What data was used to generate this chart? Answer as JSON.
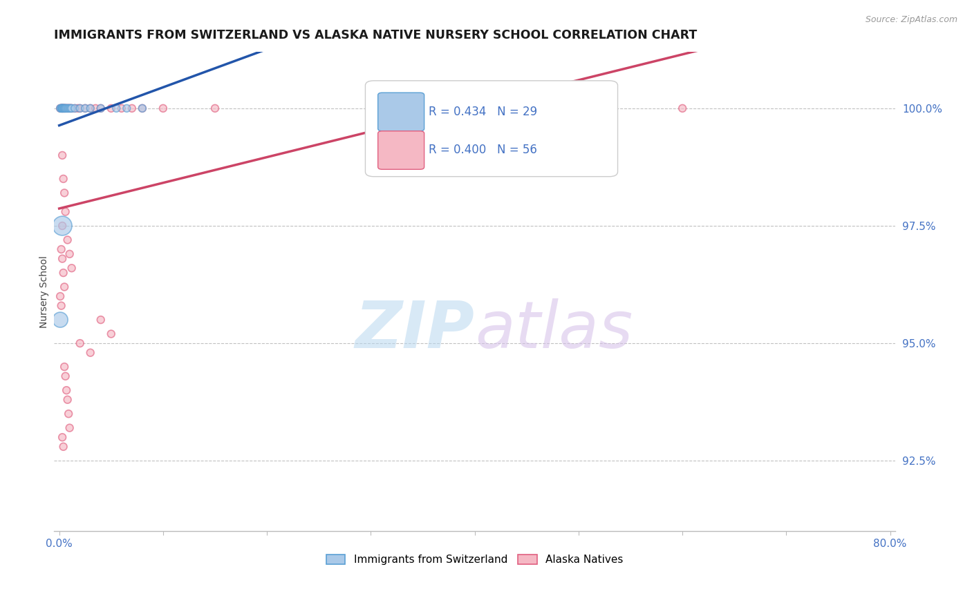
{
  "title": "IMMIGRANTS FROM SWITZERLAND VS ALASKA NATIVE NURSERY SCHOOL CORRELATION CHART",
  "source_text": "Source: ZipAtlas.com",
  "ylabel": "Nursery School",
  "xlim": [
    -0.005,
    0.805
  ],
  "ylim": [
    0.91,
    1.012
  ],
  "xtick_positions": [
    0.0,
    0.1,
    0.2,
    0.3,
    0.4,
    0.5,
    0.6,
    0.7,
    0.8
  ],
  "xticklabels": [
    "0.0%",
    "",
    "",
    "",
    "",
    "",
    "",
    "",
    "80.0%"
  ],
  "ytick_positions": [
    1.0,
    0.975,
    0.95,
    0.925
  ],
  "yticklabels": [
    "100.0%",
    "97.5%",
    "95.0%",
    "92.5%"
  ],
  "blue_color": "#aac9e8",
  "pink_color": "#f5b8c4",
  "blue_edge_color": "#5a9fd4",
  "pink_edge_color": "#e06080",
  "blue_line_color": "#2255aa",
  "pink_line_color": "#cc4466",
  "R_blue": 0.434,
  "N_blue": 29,
  "R_pink": 0.4,
  "N_pink": 56,
  "legend_label_blue": "Immigrants from Switzerland",
  "legend_label_pink": "Alaska Natives",
  "watermark_zip": "ZIP",
  "watermark_atlas": "atlas",
  "blue_scatter_x": [
    0.001,
    0.002,
    0.002,
    0.003,
    0.003,
    0.003,
    0.003,
    0.004,
    0.004,
    0.005,
    0.005,
    0.006,
    0.006,
    0.007,
    0.008,
    0.009,
    0.01,
    0.011,
    0.012,
    0.015,
    0.02,
    0.025,
    0.03,
    0.04,
    0.055,
    0.065,
    0.08,
    0.003,
    0.001
  ],
  "blue_scatter_y": [
    1.0,
    1.0,
    1.0,
    1.0,
    1.0,
    1.0,
    1.0,
    1.0,
    1.0,
    1.0,
    1.0,
    1.0,
    1.0,
    1.0,
    1.0,
    1.0,
    1.0,
    1.0,
    1.0,
    1.0,
    1.0,
    1.0,
    1.0,
    1.0,
    1.0,
    1.0,
    1.0,
    0.975,
    0.955
  ],
  "blue_scatter_size": [
    60,
    60,
    60,
    60,
    60,
    60,
    60,
    60,
    60,
    60,
    60,
    60,
    60,
    60,
    60,
    60,
    60,
    60,
    60,
    60,
    60,
    60,
    60,
    60,
    60,
    60,
    60,
    400,
    250
  ],
  "pink_scatter_x": [
    0.001,
    0.002,
    0.002,
    0.003,
    0.003,
    0.004,
    0.004,
    0.005,
    0.005,
    0.006,
    0.007,
    0.008,
    0.009,
    0.01,
    0.011,
    0.012,
    0.015,
    0.018,
    0.02,
    0.025,
    0.03,
    0.035,
    0.04,
    0.05,
    0.06,
    0.07,
    0.08,
    0.1,
    0.15,
    0.6,
    0.003,
    0.004,
    0.005,
    0.006,
    0.003,
    0.008,
    0.01,
    0.012,
    0.002,
    0.003,
    0.004,
    0.005,
    0.001,
    0.002,
    0.04,
    0.05,
    0.02,
    0.03,
    0.005,
    0.006,
    0.007,
    0.008,
    0.009,
    0.01,
    0.003,
    0.004
  ],
  "pink_scatter_y": [
    1.0,
    1.0,
    1.0,
    1.0,
    1.0,
    1.0,
    1.0,
    1.0,
    1.0,
    1.0,
    1.0,
    1.0,
    1.0,
    1.0,
    1.0,
    1.0,
    1.0,
    1.0,
    1.0,
    1.0,
    1.0,
    1.0,
    1.0,
    1.0,
    1.0,
    1.0,
    1.0,
    1.0,
    1.0,
    1.0,
    0.99,
    0.985,
    0.982,
    0.978,
    0.975,
    0.972,
    0.969,
    0.966,
    0.97,
    0.968,
    0.965,
    0.962,
    0.96,
    0.958,
    0.955,
    0.952,
    0.95,
    0.948,
    0.945,
    0.943,
    0.94,
    0.938,
    0.935,
    0.932,
    0.93,
    0.928
  ],
  "pink_scatter_size": [
    60,
    60,
    60,
    60,
    60,
    60,
    60,
    60,
    60,
    60,
    60,
    60,
    60,
    60,
    60,
    60,
    60,
    60,
    60,
    60,
    60,
    60,
    60,
    60,
    60,
    60,
    60,
    60,
    60,
    60,
    60,
    60,
    60,
    60,
    60,
    60,
    60,
    60,
    60,
    60,
    60,
    60,
    60,
    60,
    60,
    60,
    60,
    60,
    60,
    60,
    60,
    60,
    60,
    60,
    60,
    60
  ]
}
